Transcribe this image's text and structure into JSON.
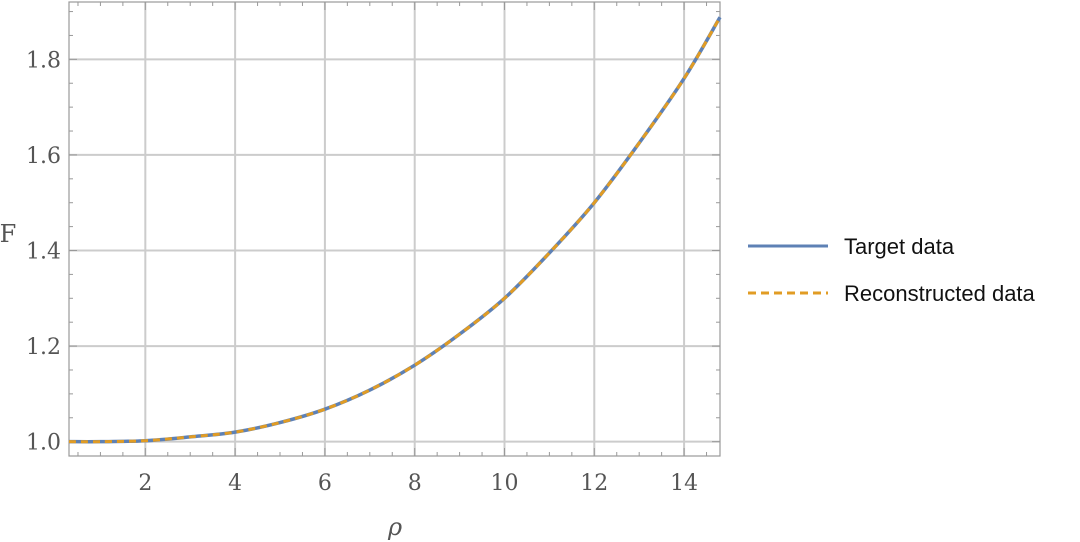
{
  "chart_data": {
    "type": "line",
    "title": "",
    "xlabel": "ρ",
    "ylabel": "F",
    "xlim": [
      0.3,
      14.8
    ],
    "ylim": [
      0.97,
      1.92
    ],
    "x_ticks": [
      2,
      4,
      6,
      8,
      10,
      12,
      14
    ],
    "y_ticks": [
      1.0,
      1.2,
      1.4,
      1.6,
      1.8
    ],
    "x_tick_labels": [
      "2",
      "4",
      "6",
      "8",
      "10",
      "12",
      "14"
    ],
    "y_tick_labels": [
      "1.0",
      "1.2",
      "1.4",
      "1.6",
      "1.8"
    ],
    "grid": true,
    "legend_position": "right",
    "series": [
      {
        "name": "Target data",
        "style": "solid",
        "color": "#5e81b5",
        "x": [
          0.3,
          1,
          2,
          3,
          4,
          5,
          6,
          7,
          8,
          9,
          10,
          11,
          12,
          13,
          14,
          14.8
        ],
        "y": [
          1.0,
          1.0,
          1.002,
          1.01,
          1.02,
          1.04,
          1.068,
          1.108,
          1.16,
          1.225,
          1.3,
          1.395,
          1.5,
          1.625,
          1.76,
          1.888
        ]
      },
      {
        "name": "Reconstructed data",
        "style": "dashed",
        "color": "#e19c24",
        "x": [
          0.3,
          1,
          2,
          3,
          4,
          5,
          6,
          7,
          8,
          9,
          10,
          11,
          12,
          13,
          14,
          14.8
        ],
        "y": [
          1.0,
          1.0,
          1.002,
          1.01,
          1.02,
          1.04,
          1.068,
          1.108,
          1.16,
          1.225,
          1.3,
          1.395,
          1.5,
          1.625,
          1.76,
          1.888
        ]
      }
    ]
  }
}
